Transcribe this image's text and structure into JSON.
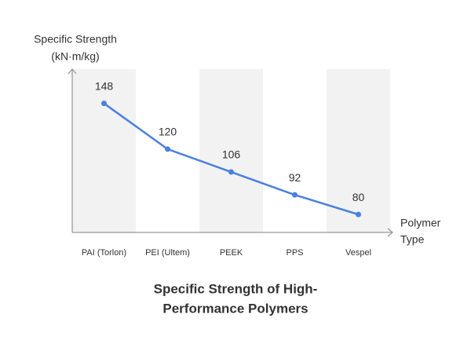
{
  "chart_data": {
    "type": "line",
    "title": [
      "Specific Strength of High-",
      "Performance Polymers"
    ],
    "y_label": [
      "Specific Strength",
      "(kN·m/kg)"
    ],
    "x_label": [
      "Polymer",
      "Type"
    ],
    "categories": [
      "PAI (Torlon)",
      "PEI (Ultem)",
      "PEEK",
      "PPS",
      "Vespel"
    ],
    "values": [
      148,
      120,
      106,
      92,
      80
    ],
    "color": "#4a80e0",
    "ylim": [
      69,
      169
    ]
  }
}
